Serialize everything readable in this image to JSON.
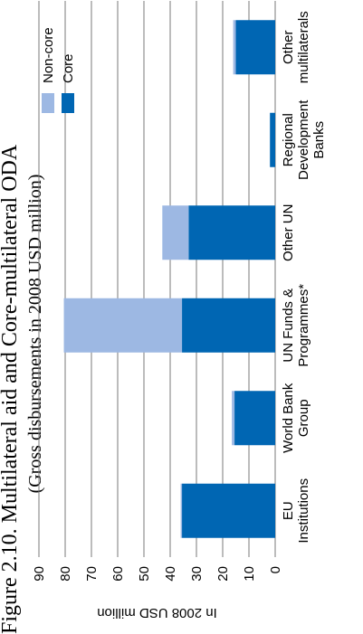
{
  "chart_data": {
    "type": "bar",
    "stacked": true,
    "title": "Figure 2.10. Multilateral aid and Core-multilateral ODA",
    "subtitle": "(Gross disbursements in 2008 USD million)",
    "ylabel": "In 2008 USD million",
    "ylim": [
      0,
      90
    ],
    "yticks": [
      0,
      10,
      20,
      30,
      40,
      50,
      60,
      70,
      80,
      90
    ],
    "grid": true,
    "legend_position": "top",
    "categories": [
      [
        "EU",
        "Institutions"
      ],
      [
        "World Bank",
        "Group"
      ],
      [
        "UN Funds &",
        "Programmes*"
      ],
      [
        "Other UN"
      ],
      [
        "Regional",
        "Development",
        "Banks"
      ],
      [
        "Other",
        "multilaterals"
      ]
    ],
    "series": [
      {
        "name": "Core",
        "color": "#0066b3",
        "values": [
          35.5,
          15.5,
          35.5,
          33,
          2,
          15
        ]
      },
      {
        "name": "Non-core",
        "color": "#9db8e3",
        "values": [
          0.5,
          1,
          45,
          10,
          0,
          1
        ]
      }
    ]
  }
}
